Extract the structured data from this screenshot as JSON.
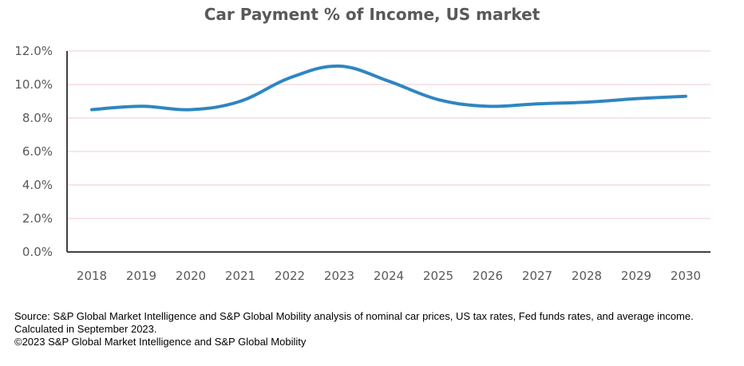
{
  "chart_data": {
    "type": "line",
    "title": "Car Payment % of Income, US market",
    "xlabel": "",
    "ylabel": "",
    "categories": [
      "2018",
      "2019",
      "2020",
      "2021",
      "2022",
      "2023",
      "2024",
      "2025",
      "2026",
      "2027",
      "2028",
      "2029",
      "2030"
    ],
    "series": [
      {
        "values": [
          8.5,
          8.7,
          8.5,
          9.0,
          10.4,
          11.1,
          10.2,
          9.1,
          8.7,
          8.85,
          8.95,
          9.15,
          9.3
        ]
      }
    ],
    "ylim": [
      0,
      12
    ],
    "yticks": [
      0,
      2,
      4,
      6,
      8,
      10,
      12
    ],
    "ytick_labels": [
      "0.0%",
      "2.0%",
      "4.0%",
      "6.0%",
      "8.0%",
      "10.0%",
      "12.0%"
    ],
    "grid": true,
    "legend": "none",
    "colors": {
      "line": "#2E86C1",
      "grid": "#F2C9D2",
      "axis": "#404040",
      "text": "#595959"
    }
  },
  "footer": {
    "source_line1": "Source: S&P Global Market Intelligence and S&P Global Mobility analysis of nominal car prices, US tax rates, Fed funds rates, and average income.",
    "source_line2": "Calculated in September 2023.",
    "copyright": "©2023 S&P Global Market Intelligence and S&P Global Mobility"
  }
}
